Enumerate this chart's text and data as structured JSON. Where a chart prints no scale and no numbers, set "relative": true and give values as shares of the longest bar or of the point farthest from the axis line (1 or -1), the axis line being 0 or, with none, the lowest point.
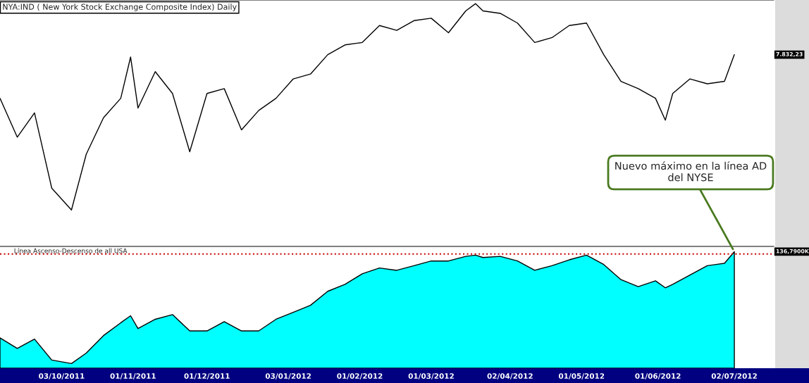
{
  "chart_data": [
    {
      "type": "line",
      "relative": true,
      "title": "NYA:IND ( New York Stock Exchange Composite Index) Daily",
      "tick_labels": false,
      "xlim": [
        "2011-09-08",
        "2012-07-18"
      ],
      "x": [
        "2011-09-08",
        "2011-09-15",
        "2011-09-22",
        "2011-09-29",
        "2011-10-07",
        "2011-10-13",
        "2011-10-20",
        "2011-10-27",
        "2011-10-31",
        "2011-11-03",
        "2011-11-10",
        "2011-11-17",
        "2011-11-24",
        "2011-12-01",
        "2011-12-08",
        "2011-12-15",
        "2011-12-22",
        "2011-12-29",
        "2012-01-05",
        "2012-01-12",
        "2012-01-19",
        "2012-01-26",
        "2012-02-02",
        "2012-02-09",
        "2012-02-16",
        "2012-02-23",
        "2012-03-01",
        "2012-03-08",
        "2012-03-15",
        "2012-03-19",
        "2012-03-22",
        "2012-03-29",
        "2012-04-05",
        "2012-04-12",
        "2012-04-19",
        "2012-04-26",
        "2012-05-03",
        "2012-05-10",
        "2012-05-17",
        "2012-05-24",
        "2012-05-31",
        "2012-06-04",
        "2012-06-07",
        "2012-06-14",
        "2012-06-21",
        "2012-06-28",
        "2012-07-02"
      ],
      "series": [
        {
          "color": "#000000",
          "values": [
            0.61,
            0.45,
            0.55,
            0.24,
            0.15,
            0.38,
            0.53,
            0.61,
            0.78,
            0.57,
            0.72,
            0.63,
            0.39,
            0.63,
            0.65,
            0.48,
            0.56,
            0.61,
            0.69,
            0.71,
            0.79,
            0.83,
            0.84,
            0.91,
            0.89,
            0.93,
            0.94,
            0.88,
            0.97,
            1.0,
            0.97,
            0.96,
            0.92,
            0.84,
            0.86,
            0.91,
            0.92,
            0.79,
            0.68,
            0.65,
            0.61,
            0.52,
            0.63,
            0.69,
            0.67,
            0.68,
            0.79
          ]
        }
      ],
      "annotations": [
        "7.832,23"
      ]
    },
    {
      "type": "area",
      "relative": true,
      "title": "Línea Ascenso-Descenso de all USA",
      "tick_labels": "x",
      "xlim": [
        "2011-09-08",
        "2012-07-18"
      ],
      "xticks": [
        {
          "value": "2011-10-03",
          "label": "03/10/2011"
        },
        {
          "value": "2011-11-01",
          "label": "01/11/2011"
        },
        {
          "value": "2011-12-01",
          "label": "01/12/2011"
        },
        {
          "value": "2012-01-03",
          "label": "03/01/2012"
        },
        {
          "value": "2012-02-01",
          "label": "01/02/2012"
        },
        {
          "value": "2012-03-01",
          "label": "01/03/2012"
        },
        {
          "value": "2012-04-02",
          "label": "02/04/2012"
        },
        {
          "value": "2012-05-01",
          "label": "01/05/2012"
        },
        {
          "value": "2012-06-01",
          "label": "01/06/2012"
        },
        {
          "value": "2012-07-02",
          "label": "02/07/2012"
        }
      ],
      "x": [
        "2011-09-08",
        "2011-09-15",
        "2011-09-22",
        "2011-09-29",
        "2011-10-07",
        "2011-10-13",
        "2011-10-20",
        "2011-10-27",
        "2011-10-31",
        "2011-11-03",
        "2011-11-10",
        "2011-11-17",
        "2011-11-24",
        "2011-12-01",
        "2011-12-08",
        "2011-12-15",
        "2011-12-22",
        "2011-12-29",
        "2012-01-05",
        "2012-01-12",
        "2012-01-19",
        "2012-01-26",
        "2012-02-02",
        "2012-02-09",
        "2012-02-16",
        "2012-02-23",
        "2012-03-01",
        "2012-03-08",
        "2012-03-15",
        "2012-03-19",
        "2012-03-22",
        "2012-03-29",
        "2012-04-05",
        "2012-04-12",
        "2012-04-19",
        "2012-04-26",
        "2012-05-03",
        "2012-05-10",
        "2012-05-17",
        "2012-05-24",
        "2012-05-31",
        "2012-06-04",
        "2012-06-07",
        "2012-06-14",
        "2012-06-21",
        "2012-06-28",
        "2012-07-02"
      ],
      "series": [
        {
          "color": "#00ffff",
          "values": [
            0.26,
            0.17,
            0.25,
            0.07,
            0.04,
            0.13,
            0.28,
            0.39,
            0.45,
            0.34,
            0.42,
            0.46,
            0.32,
            0.32,
            0.4,
            0.32,
            0.32,
            0.42,
            0.48,
            0.54,
            0.66,
            0.72,
            0.81,
            0.86,
            0.84,
            0.88,
            0.92,
            0.92,
            0.96,
            0.97,
            0.95,
            0.96,
            0.92,
            0.84,
            0.88,
            0.93,
            0.97,
            0.89,
            0.76,
            0.7,
            0.75,
            0.69,
            0.72,
            0.8,
            0.88,
            0.9,
            1.0
          ]
        }
      ],
      "ref_lines": [
        {
          "axis": "y",
          "value": 0.98,
          "color": "#cc0000",
          "line_style": "dotted"
        }
      ],
      "annotations": [
        "136,7900K",
        {
          "text": "Nuevo máximo en la línea AD del NYSE",
          "x": "2012-07-02",
          "y": 1.0
        }
      ]
    }
  ]
}
